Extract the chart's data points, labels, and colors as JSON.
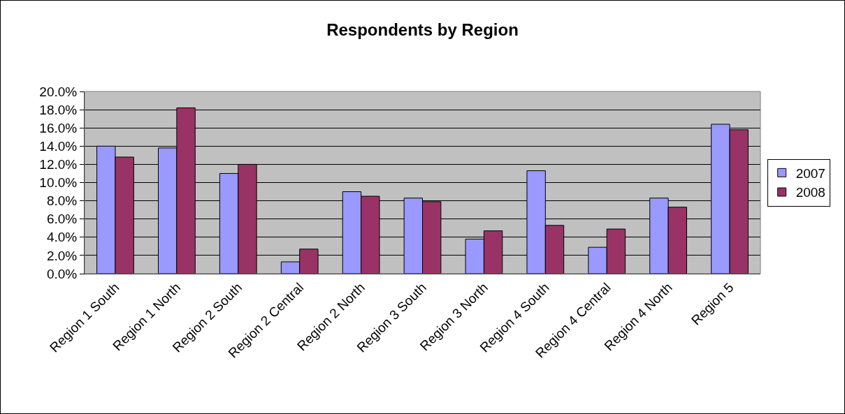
{
  "chart_data": {
    "type": "bar",
    "title": "Respondents by Region",
    "categories": [
      "Region 1 South",
      "Region 1 North",
      "Region 2 South",
      "Region 2 Central",
      "Region 2 North",
      "Region 3 South",
      "Region 3 North",
      "Region 4 South",
      "Region 4 Central",
      "Region 4 North",
      "Region 5"
    ],
    "series": [
      {
        "name": "2007",
        "color": "#9999ff",
        "values": [
          14.0,
          13.8,
          11.0,
          1.3,
          9.0,
          8.3,
          3.8,
          11.3,
          2.9,
          8.3,
          16.4
        ]
      },
      {
        "name": "2008",
        "color": "#993366",
        "values": [
          12.8,
          18.2,
          12.0,
          2.7,
          8.5,
          7.9,
          4.7,
          5.3,
          4.9,
          7.3,
          15.8
        ]
      }
    ],
    "ylim": [
      0,
      20
    ],
    "yticks": [
      {
        "value": 0,
        "label": "0.0%"
      },
      {
        "value": 2,
        "label": "2.0%"
      },
      {
        "value": 4,
        "label": "4.0%"
      },
      {
        "value": 6,
        "label": "6.0%"
      },
      {
        "value": 8,
        "label": "8.0%"
      },
      {
        "value": 10,
        "label": "10.0%"
      },
      {
        "value": 12,
        "label": "12.0%"
      },
      {
        "value": 14,
        "label": "14.0%"
      },
      {
        "value": 16,
        "label": "16.0%"
      },
      {
        "value": 18,
        "label": "18.0%"
      },
      {
        "value": 20,
        "label": "20.0%"
      }
    ],
    "grid": "y",
    "legend": "right"
  }
}
